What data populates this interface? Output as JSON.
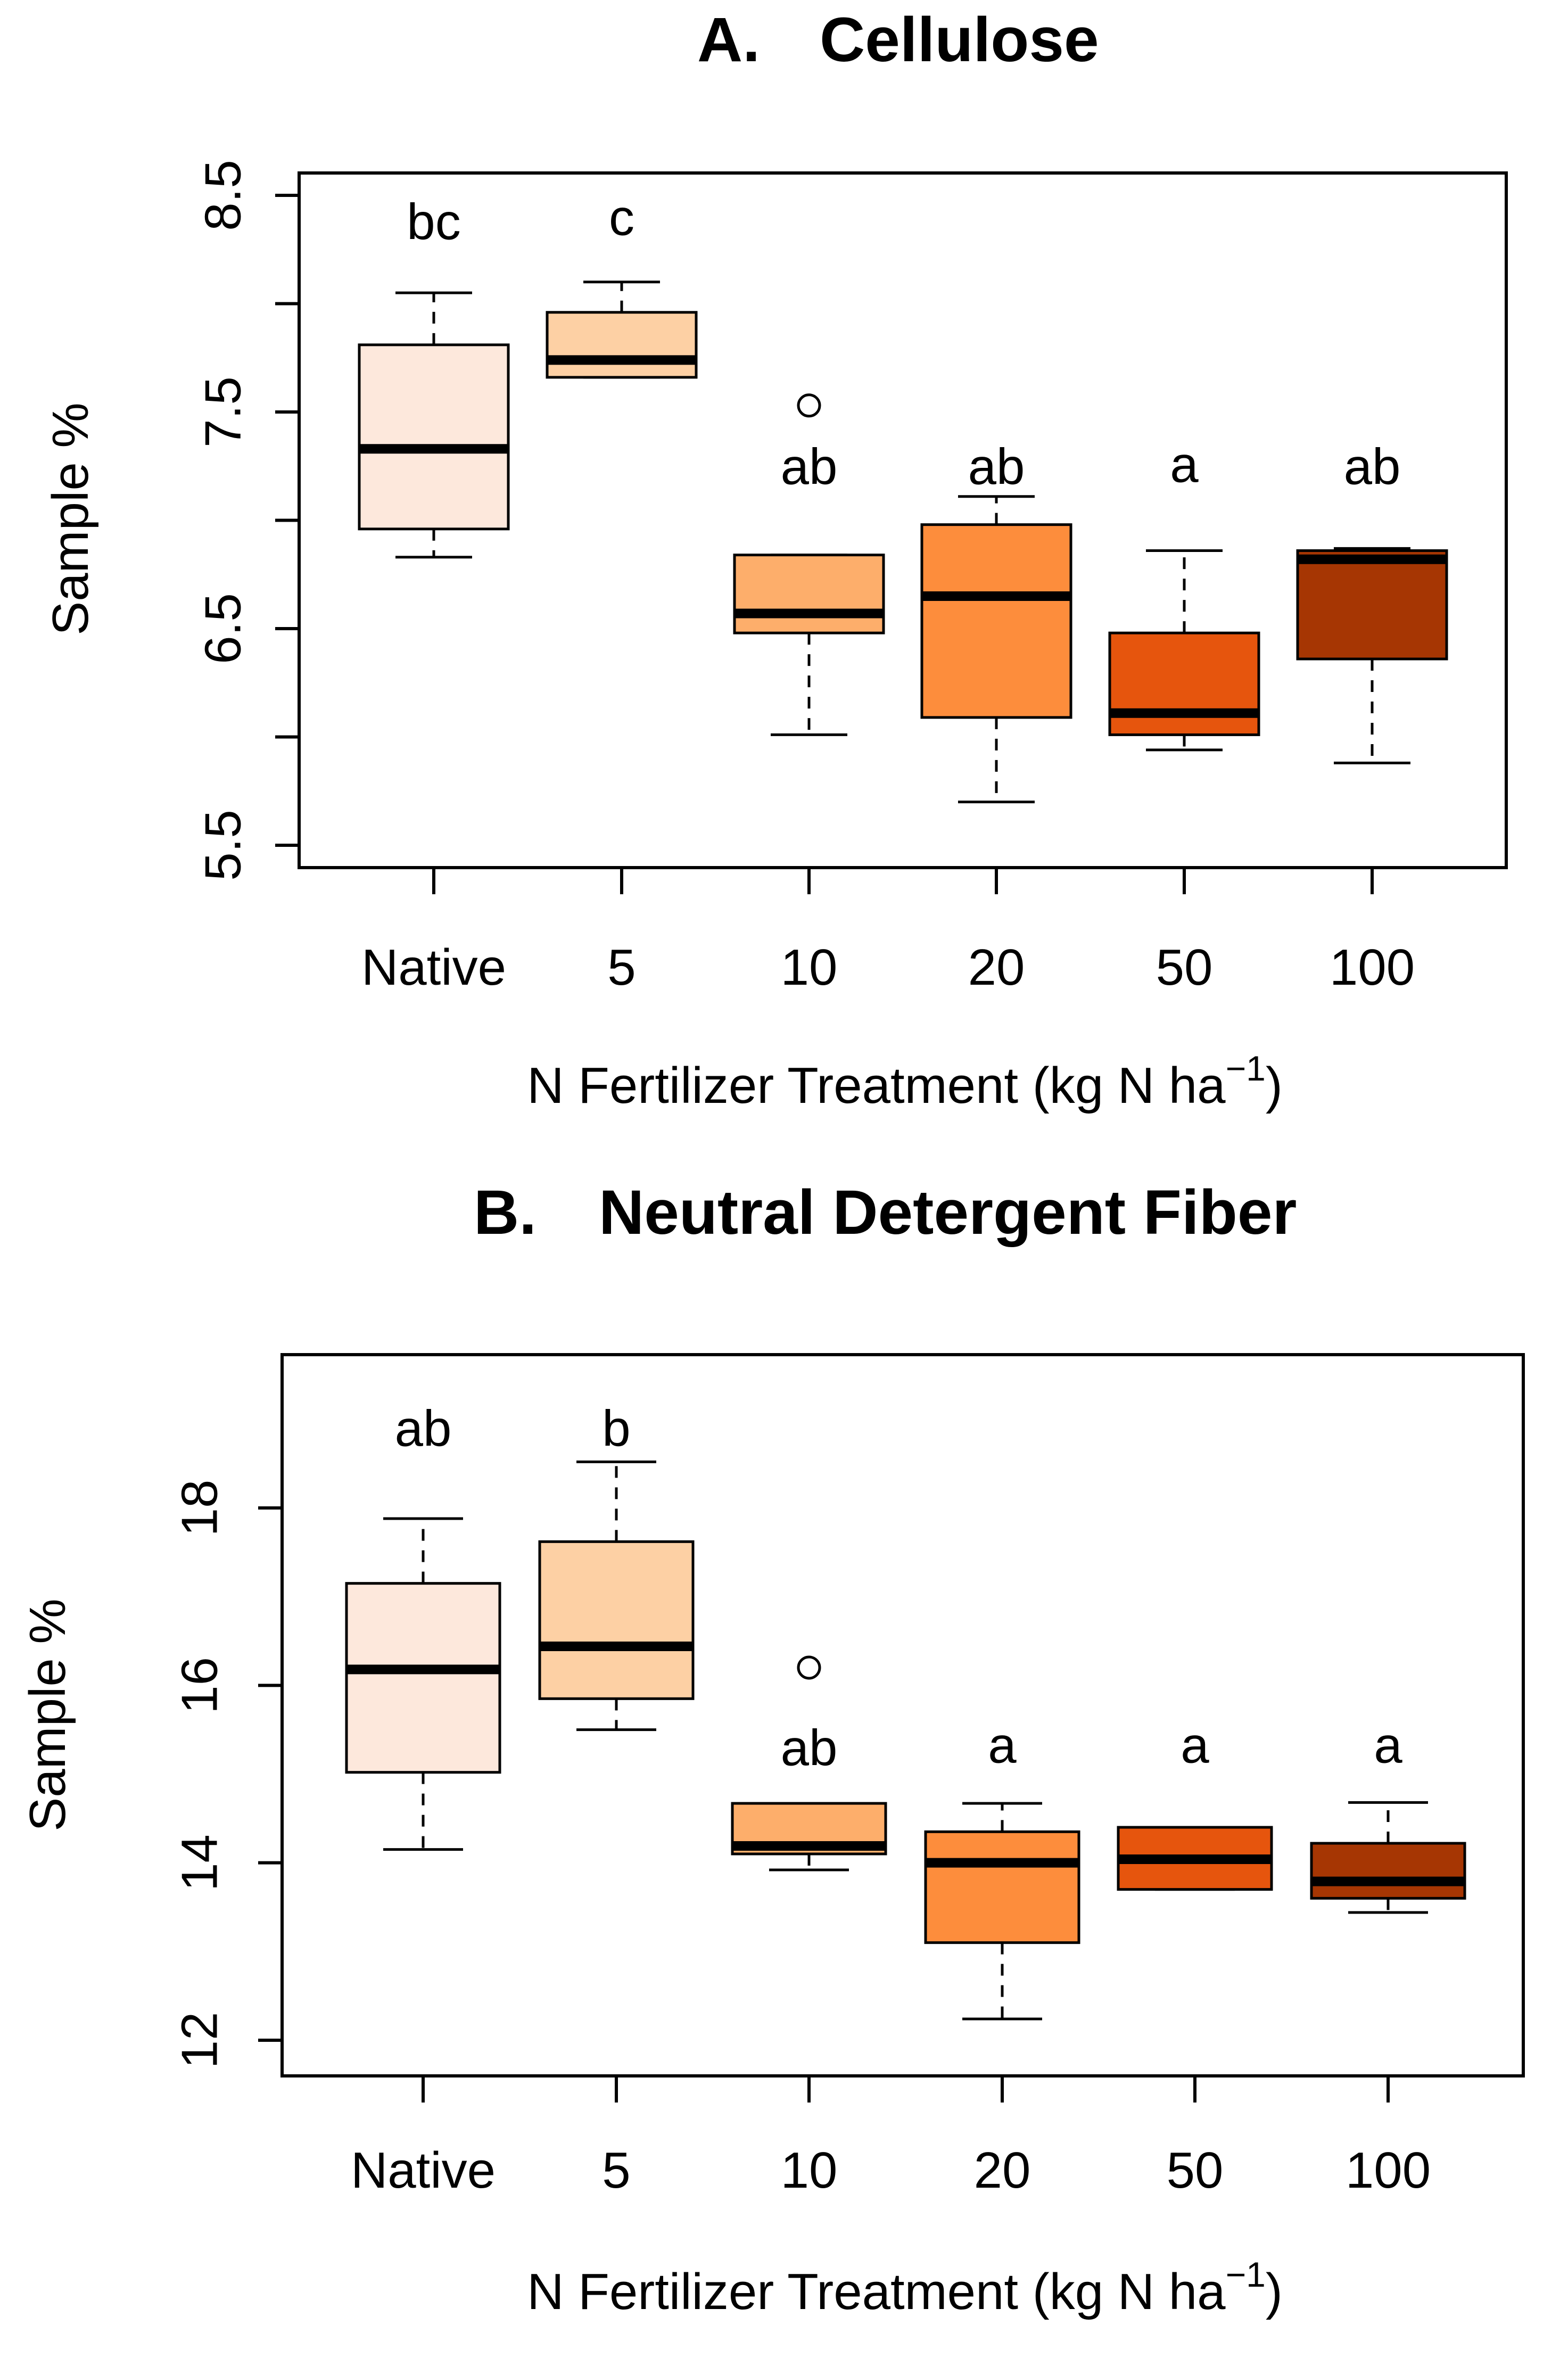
{
  "chart_data": [
    {
      "id": "A",
      "type": "boxplot",
      "title_letter": "A.",
      "title_text": "Cellulose",
      "xlabel": "N Fertilizer Treatment (kg N ha",
      "xlabel_sup": "−1",
      "xlabel_close": ")",
      "ylabel": "Sample %",
      "ylim": [
        5.4,
        8.6
      ],
      "yticks": [
        5.5,
        6.0,
        6.5,
        7.0,
        7.5,
        8.0,
        8.5
      ],
      "ytick_labels": [
        "5.5",
        "",
        "6.5",
        "",
        "7.5",
        "",
        "8.5"
      ],
      "categories": [
        "Native",
        "5",
        "10",
        "20",
        "50",
        "100"
      ],
      "colors": [
        "#fde8dc",
        "#fdd0a4",
        "#fdae6b",
        "#fd8d3c",
        "#e6550d",
        "#a63603"
      ],
      "boxes": [
        {
          "min": 6.83,
          "q1": 6.96,
          "median": 7.33,
          "q3": 7.81,
          "max": 8.05
        },
        {
          "min": 7.66,
          "q1": 7.66,
          "median": 7.74,
          "q3": 7.96,
          "max": 8.1
        },
        {
          "min": 6.01,
          "q1": 6.48,
          "median": 6.57,
          "q3": 6.84,
          "max": 6.84
        },
        {
          "min": 5.7,
          "q1": 6.09,
          "median": 6.65,
          "q3": 6.98,
          "max": 7.11
        },
        {
          "min": 5.94,
          "q1": 6.01,
          "median": 6.11,
          "q3": 6.48,
          "max": 6.86
        },
        {
          "min": 5.88,
          "q1": 6.36,
          "median": 6.82,
          "q3": 6.86,
          "max": 6.87
        }
      ],
      "outliers": [
        {
          "category": "10",
          "value": 7.53
        }
      ],
      "significance": [
        {
          "category": "Native",
          "label": "bc",
          "value": 8.38
        },
        {
          "category": "5",
          "label": "c",
          "value": 8.4
        },
        {
          "category": "10",
          "label": "ab",
          "value": 7.25
        },
        {
          "category": "20",
          "label": "ab",
          "value": 7.25
        },
        {
          "category": "50",
          "label": "a",
          "value": 7.26
        },
        {
          "category": "100",
          "label": "ab",
          "value": 7.25
        }
      ]
    },
    {
      "id": "B",
      "type": "boxplot",
      "title_letter": "B.",
      "title_text": "Neutral Detergent Fiber",
      "xlabel": "N Fertilizer Treatment (kg N ha",
      "xlabel_sup": "−1",
      "xlabel_close": ")",
      "ylabel": "Sample %",
      "ylim": [
        11.7,
        19.8
      ],
      "yticks": [
        12,
        14,
        16,
        18
      ],
      "ytick_labels": [
        "12",
        "14",
        "16",
        "18"
      ],
      "categories": [
        "Native",
        "5",
        "10",
        "20",
        "50",
        "100"
      ],
      "colors": [
        "#fde8dc",
        "#fdd0a4",
        "#fdae6b",
        "#fd8d3c",
        "#e6550d",
        "#a63603"
      ],
      "boxes": [
        {
          "min": 14.15,
          "q1": 15.02,
          "median": 16.18,
          "q3": 17.15,
          "max": 17.88
        },
        {
          "min": 15.5,
          "q1": 15.85,
          "median": 16.44,
          "q3": 17.62,
          "max": 18.52
        },
        {
          "min": 13.92,
          "q1": 14.1,
          "median": 14.19,
          "q3": 14.67,
          "max": 14.67
        },
        {
          "min": 12.24,
          "q1": 13.1,
          "median": 14.0,
          "q3": 14.35,
          "max": 14.67
        },
        {
          "min": 13.7,
          "q1": 13.7,
          "median": 14.04,
          "q3": 14.4,
          "max": 14.4
        },
        {
          "min": 13.44,
          "q1": 13.6,
          "median": 13.79,
          "q3": 14.22,
          "max": 14.68
        }
      ],
      "outliers": [
        {
          "category": "10",
          "value": 16.2
        }
      ],
      "significance": [
        {
          "category": "Native",
          "label": "ab",
          "value": 18.9
        },
        {
          "category": "5",
          "label": "b",
          "value": 18.9
        },
        {
          "category": "10",
          "label": "ab",
          "value": 15.3
        },
        {
          "category": "20",
          "label": "a",
          "value": 15.33
        },
        {
          "category": "50",
          "label": "a",
          "value": 15.33
        },
        {
          "category": "100",
          "label": "a",
          "value": 15.33
        }
      ]
    }
  ]
}
